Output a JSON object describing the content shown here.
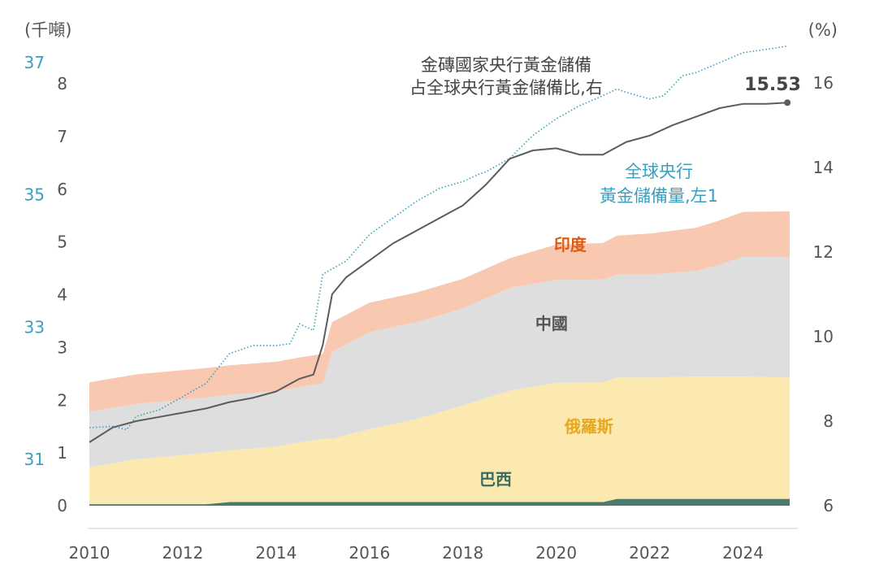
{
  "chart_data": {
    "type": "area",
    "left_axis_unit": "(千噸)",
    "right_axis_unit": "(%)",
    "left_ticks": [
      0,
      1,
      2,
      3,
      4,
      5,
      6,
      7,
      8
    ],
    "left_ylim": [
      0,
      8
    ],
    "left1_ticks": [
      31,
      33,
      35,
      37
    ],
    "left1_ylim": [
      30.3,
      37.0
    ],
    "right_ticks": [
      6,
      8,
      10,
      12,
      14,
      16
    ],
    "right_ylim": [
      6,
      16.4
    ],
    "x_ticks": [
      2010,
      2012,
      2014,
      2016,
      2018,
      2020,
      2022,
      2024
    ],
    "xlim": [
      2010,
      2025
    ],
    "stack_x": [
      2010,
      2011,
      2012,
      2012.5,
      2013,
      2014,
      2014.5,
      2015,
      2015.2,
      2016,
      2017,
      2018,
      2019,
      2020,
      2021,
      2021.3,
      2022,
      2023,
      2023.5,
      2024,
      2025
    ],
    "series": [
      {
        "name": "巴西",
        "color": "#4a7a6e",
        "label_color": "#3d6b60",
        "label_pos": [
          2018.7,
          0.5
        ],
        "values": [
          0.03,
          0.03,
          0.03,
          0.03,
          0.07,
          0.07,
          0.07,
          0.07,
          0.07,
          0.07,
          0.07,
          0.07,
          0.07,
          0.07,
          0.07,
          0.13,
          0.13,
          0.13,
          0.13,
          0.13,
          0.13
        ]
      },
      {
        "name": "俄羅斯",
        "color": "#fbe9b0",
        "label_color": "#e8a81e",
        "label_pos": [
          2020.7,
          1.5
        ],
        "values": [
          0.7,
          0.85,
          0.93,
          0.97,
          0.98,
          1.05,
          1.13,
          1.2,
          1.2,
          1.38,
          1.57,
          1.83,
          2.11,
          2.26,
          2.27,
          2.3,
          2.3,
          2.32,
          2.32,
          2.32,
          2.3
        ]
      },
      {
        "name": "中國",
        "color": "#dedede",
        "label_color": "#555555",
        "label_pos": [
          2019.9,
          3.45
        ],
        "values": [
          1.05,
          1.05,
          1.05,
          1.05,
          1.05,
          1.05,
          1.05,
          1.05,
          1.65,
          1.84,
          1.84,
          1.84,
          1.95,
          1.95,
          1.95,
          1.95,
          1.95,
          2.0,
          2.12,
          2.27,
          2.28
        ]
      },
      {
        "name": "印度",
        "color": "#f9c8b0",
        "label_color": "#e05a10",
        "label_pos": [
          2020.3,
          4.95
        ],
        "values": [
          0.56,
          0.56,
          0.56,
          0.56,
          0.56,
          0.56,
          0.56,
          0.56,
          0.56,
          0.56,
          0.56,
          0.56,
          0.56,
          0.67,
          0.69,
          0.74,
          0.78,
          0.82,
          0.84,
          0.85,
          0.87
        ]
      }
    ],
    "brics_share": {
      "name": "金磚國家央行黃金儲備占全球央行黃金儲備比,右",
      "name_lines": [
        "金磚國家央行黃金儲備",
        "占全球央行黃金儲備比,右"
      ],
      "color": "#5c5c5c",
      "x": [
        2010,
        2010.5,
        2011,
        2011.5,
        2012,
        2012.5,
        2013,
        2013.5,
        2014,
        2014.5,
        2014.8,
        2015,
        2015.2,
        2015.5,
        2016,
        2016.5,
        2017,
        2017.5,
        2018,
        2018.5,
        2019,
        2019.5,
        2020,
        2020.5,
        2021,
        2021.5,
        2022,
        2022.5,
        2023,
        2023.5,
        2024,
        2024.5,
        2024.95
      ],
      "values": [
        7.5,
        7.85,
        8.0,
        8.1,
        8.2,
        8.3,
        8.45,
        8.55,
        8.7,
        9.0,
        9.1,
        9.8,
        11.0,
        11.4,
        11.8,
        12.2,
        12.5,
        12.8,
        13.1,
        13.6,
        14.2,
        14.4,
        14.45,
        14.3,
        14.3,
        14.6,
        14.75,
        15.0,
        15.2,
        15.4,
        15.5,
        15.5,
        15.53
      ]
    },
    "end_label": "15.53",
    "global_reserves": {
      "name": "全球央行黃金儲備量,左1",
      "name_lines": [
        "全球央行",
        "黃金儲備量,左1"
      ],
      "color": "#3a9fbf",
      "x": [
        2010,
        2010.5,
        2010.8,
        2011,
        2011.5,
        2012,
        2012.5,
        2013,
        2013.5,
        2014,
        2014.3,
        2014.5,
        2014.8,
        2015,
        2015.5,
        2016,
        2016.5,
        2017,
        2017.5,
        2018,
        2018.3,
        2018.5,
        2019,
        2019.5,
        2020,
        2020.5,
        2021,
        2021.3,
        2021.5,
        2022,
        2022.3,
        2022.7,
        2023,
        2023.5,
        2024,
        2024.5,
        2024.95
      ],
      "values": [
        31.48,
        31.5,
        31.45,
        31.65,
        31.75,
        31.95,
        32.15,
        32.6,
        32.72,
        32.72,
        32.75,
        33.05,
        32.95,
        33.8,
        34.0,
        34.4,
        34.65,
        34.9,
        35.1,
        35.2,
        35.3,
        35.35,
        35.55,
        35.9,
        36.15,
        36.35,
        36.5,
        36.6,
        36.55,
        36.45,
        36.5,
        36.8,
        36.85,
        37.0,
        37.15,
        37.2,
        37.25
      ]
    }
  }
}
